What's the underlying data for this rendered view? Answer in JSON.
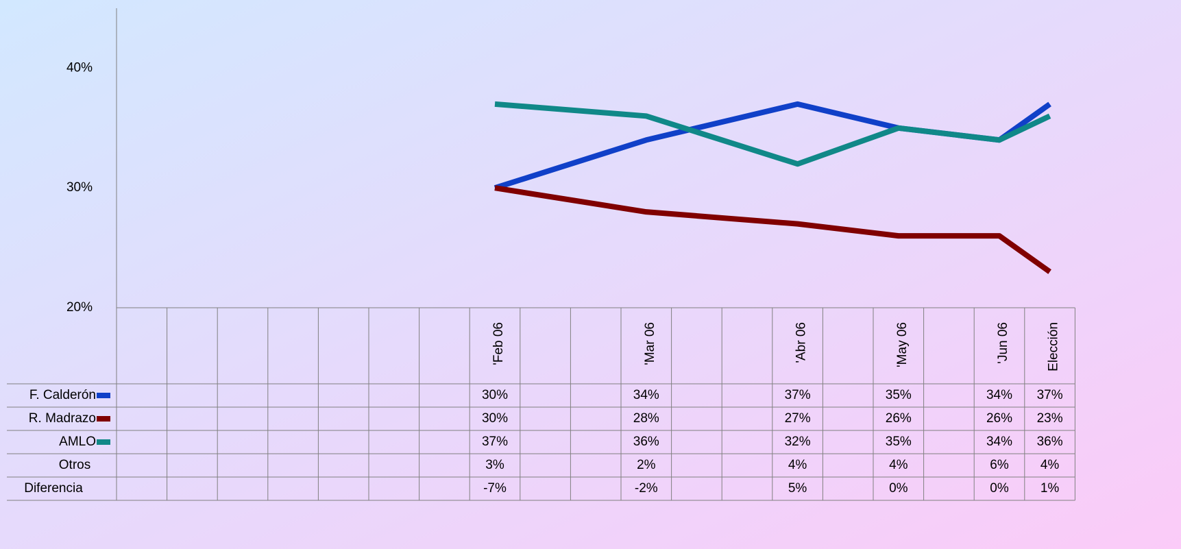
{
  "chart_data": {
    "type": "line",
    "categories": [
      "'Feb 06",
      "'Mar 06",
      "'Abr 06",
      "'May 06",
      "'Jun 06",
      "Elección"
    ],
    "series": [
      {
        "name": "F. Calderón",
        "color": "#1040c8",
        "values": [
          30,
          34,
          37,
          35,
          34,
          37
        ],
        "value_labels": [
          "30%",
          "34%",
          "37%",
          "35%",
          "34%",
          "37%"
        ]
      },
      {
        "name": "R. Madrazo",
        "color": "#800000",
        "values": [
          30,
          28,
          27,
          26,
          26,
          23
        ],
        "value_labels": [
          "30%",
          "28%",
          "27%",
          "26%",
          "26%",
          "23%"
        ]
      },
      {
        "name": "AMLO",
        "color": "#108888",
        "values": [
          37,
          36,
          32,
          35,
          34,
          36
        ],
        "value_labels": [
          "37%",
          "36%",
          "32%",
          "35%",
          "34%",
          "36%"
        ]
      }
    ],
    "table_rows": [
      {
        "name": "Otros",
        "values": [
          "3%",
          "2%",
          "4%",
          "4%",
          "6%",
          "4%"
        ]
      },
      {
        "name": "Diferencia",
        "values": [
          "-7%",
          "-2%",
          "5%",
          "0%",
          "0%",
          "1%"
        ]
      }
    ],
    "ylim": [
      20,
      45
    ],
    "yticks": [
      {
        "value": 20,
        "label": "20%"
      },
      {
        "value": 30,
        "label": "30%"
      },
      {
        "value": 40,
        "label": "40%"
      }
    ]
  }
}
